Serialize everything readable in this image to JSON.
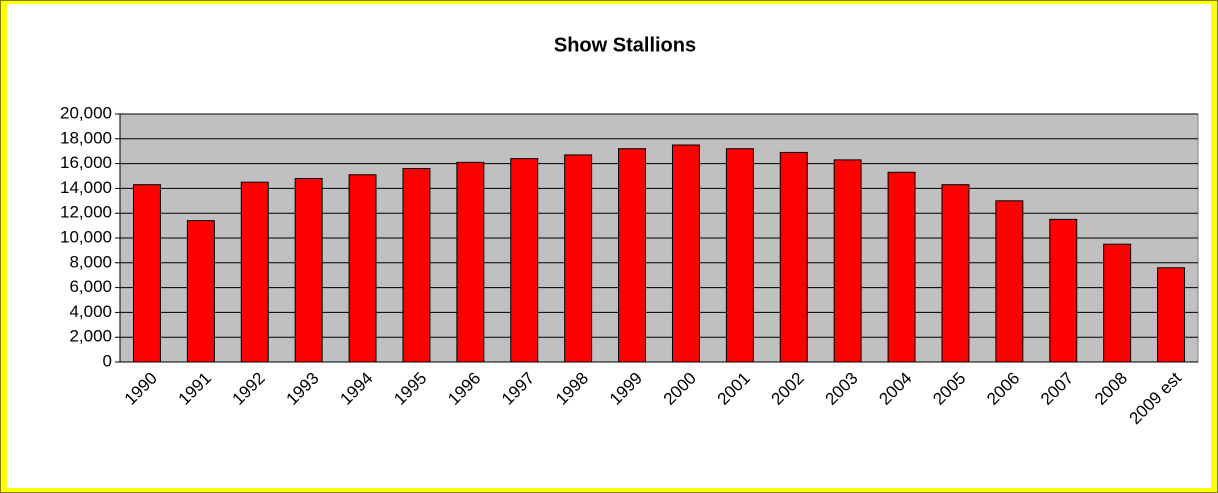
{
  "chart_data": {
    "type": "bar",
    "title": "Show Stallions",
    "categories": [
      "1990",
      "1991",
      "1992",
      "1993",
      "1994",
      "1995",
      "1996",
      "1997",
      "1998",
      "1999",
      "2000",
      "2001",
      "2002",
      "2003",
      "2004",
      "2005",
      "2006",
      "2007",
      "2008",
      "2009 est"
    ],
    "values": [
      14300,
      11400,
      14500,
      14800,
      15100,
      15600,
      16100,
      16400,
      16700,
      17200,
      17500,
      17200,
      16900,
      16300,
      15300,
      14300,
      13000,
      11500,
      9500,
      7600
    ],
    "color": "#ff0000",
    "ylim": [
      0,
      20000
    ],
    "yticks": [
      0,
      {
        "value": 2000,
        "label": "2,000"
      },
      {
        "value": 4000,
        "label": "4,000"
      },
      {
        "value": 6000,
        "label": "6,000"
      },
      {
        "value": 8000,
        "label": "8,000"
      },
      {
        "value": 10000,
        "label": "10,000"
      },
      {
        "value": 12000,
        "label": "12,000"
      },
      {
        "value": 14000,
        "label": "14,000"
      },
      {
        "value": 16000,
        "label": "16,000"
      },
      {
        "value": 18000,
        "label": "18,000"
      },
      {
        "value": 20000,
        "label": "20,000"
      }
    ],
    "grid": true
  }
}
